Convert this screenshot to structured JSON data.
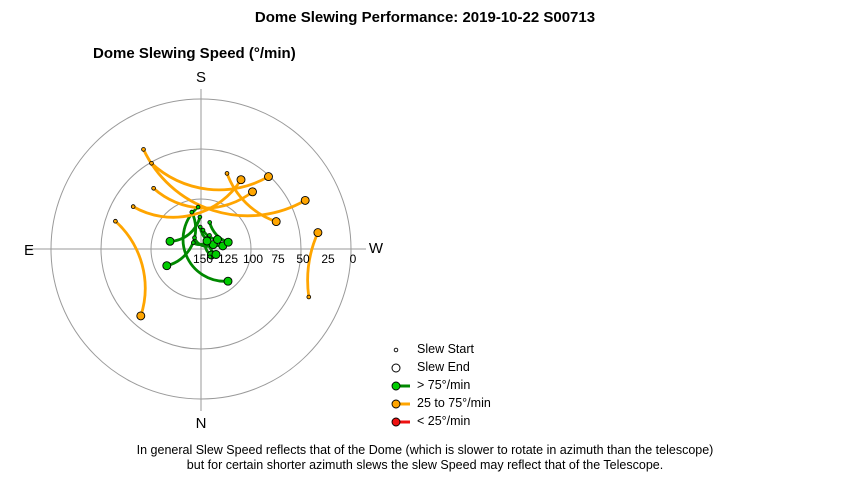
{
  "header": {
    "title": "Dome Slewing Performance: 2019-10-22 S00713"
  },
  "chart_data": {
    "type": "polar",
    "title": "Dome Slewing Speed (°/min)",
    "radial_axis": {
      "label_values": [
        "150",
        "125",
        "100",
        "75",
        "50",
        "25",
        "0"
      ],
      "inverted": true,
      "range": [
        150,
        0
      ]
    },
    "compass": {
      "top": "S",
      "bottom": "N",
      "left": "E",
      "right": "W"
    },
    "colors": {
      "fast": "#00cc00",
      "fast_stroke": "#007700",
      "medium": "#ffa500",
      "medium_stroke": "#b37400",
      "slow": "#ee1111"
    },
    "series": [
      {
        "name": "> 75°/min",
        "class": "fast",
        "arcs": [
          {
            "speed": 112,
            "az_start": 166,
            "az_end": 64
          },
          {
            "speed": 118,
            "az_start": 178,
            "az_end": 104
          },
          {
            "speed": 137,
            "az_start": 150,
            "az_end": 250
          },
          {
            "speed": 128,
            "az_start": 178,
            "az_end": 262
          },
          {
            "speed": 131,
            "az_start": 186,
            "az_end": 240
          },
          {
            "speed": 138,
            "az_start": 209,
            "az_end": 300
          },
          {
            "speed": 140,
            "az_start": 130,
            "az_end": 217
          },
          {
            "speed": 134,
            "az_start": 212,
            "az_end": 290
          },
          {
            "speed": 122,
            "az_start": 198,
            "az_end": 256
          },
          {
            "speed": 108,
            "az_start": 176,
            "az_end": 320
          }
        ]
      },
      {
        "name": "25 to 75°/min",
        "class": "medium",
        "arcs": [
          {
            "speed": 35,
            "az_start": 150,
            "az_end": 245
          },
          {
            "speed": 51,
            "az_start": 150,
            "az_end": 223
          },
          {
            "speed": 70,
            "az_start": 122,
            "az_end": 210
          },
          {
            "speed": 73,
            "az_start": 142,
            "az_end": 222
          },
          {
            "speed": 60,
            "az_start": 108,
            "az_end": 42
          },
          {
            "speed": 32,
            "az_start": 294,
            "az_end": 262
          },
          {
            "speed": 70,
            "az_start": 199,
            "az_end": 250
          }
        ]
      },
      {
        "name": "< 25°/min",
        "class": "slow",
        "arcs": []
      }
    ],
    "legend": [
      "Slew Start",
      "Slew End",
      "> 75°/min",
      "25 to 75°/min",
      "< 25°/min"
    ]
  },
  "legend": {
    "start": "Slew Start",
    "end": "Slew End",
    "fast": "> 75°/min",
    "medium": "25 to 75°/min",
    "slow": "< 25°/min"
  },
  "footer": {
    "line1": "In general Slew Speed reflects that of the Dome (which is slower to rotate in azimuth than the telescope)",
    "line2": "but for certain shorter azimuth slews the slew Speed may reflect that of the Telescope."
  }
}
